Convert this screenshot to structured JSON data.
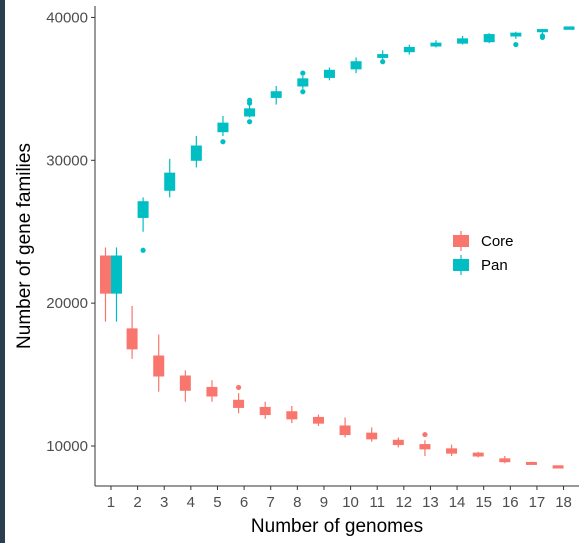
{
  "chart_data": {
    "type": "boxplot",
    "xlabel": "Number of genomes",
    "ylabel": "Number of gene families",
    "categories": [
      "1",
      "2",
      "3",
      "4",
      "5",
      "6",
      "7",
      "8",
      "9",
      "10",
      "11",
      "12",
      "13",
      "14",
      "15",
      "16",
      "17",
      "18"
    ],
    "ylim": [
      7200,
      40800
    ],
    "yticks": [
      10000,
      20000,
      30000,
      40000
    ],
    "legend_position": "right-center",
    "grid": false,
    "series": [
      {
        "name": "Core",
        "color": "#F8766D",
        "boxes": [
          {
            "lo": 18700,
            "q1": 20700,
            "med": 20800,
            "q3": 23300,
            "hi": 23900,
            "out": []
          },
          {
            "lo": 16100,
            "q1": 16800,
            "med": 17100,
            "q3": 18200,
            "hi": 19800,
            "out": []
          },
          {
            "lo": 13800,
            "q1": 14900,
            "med": 15600,
            "q3": 16300,
            "hi": 17800,
            "out": []
          },
          {
            "lo": 13100,
            "q1": 13900,
            "med": 14400,
            "q3": 14900,
            "hi": 15300,
            "out": []
          },
          {
            "lo": 13100,
            "q1": 13500,
            "med": 13800,
            "q3": 14100,
            "hi": 14600,
            "out": []
          },
          {
            "lo": 12300,
            "q1": 12700,
            "med": 12900,
            "q3": 13200,
            "hi": 13700,
            "out": [
              14100
            ]
          },
          {
            "lo": 11900,
            "q1": 12200,
            "med": 12500,
            "q3": 12700,
            "hi": 13100,
            "out": []
          },
          {
            "lo": 11600,
            "q1": 11900,
            "med": 12100,
            "q3": 12400,
            "hi": 12800,
            "out": []
          },
          {
            "lo": 11400,
            "q1": 11600,
            "med": 11800,
            "q3": 12000,
            "hi": 12200,
            "out": []
          },
          {
            "lo": 10600,
            "q1": 10800,
            "med": 11100,
            "q3": 11400,
            "hi": 12000,
            "out": []
          },
          {
            "lo": 10300,
            "q1": 10500,
            "med": 10700,
            "q3": 10900,
            "hi": 11300,
            "out": []
          },
          {
            "lo": 9900,
            "q1": 10100,
            "med": 10200,
            "q3": 10400,
            "hi": 10600,
            "out": []
          },
          {
            "lo": 9300,
            "q1": 9800,
            "med": 10000,
            "q3": 10100,
            "hi": 10400,
            "out": [
              10800
            ]
          },
          {
            "lo": 9300,
            "q1": 9500,
            "med": 9600,
            "q3": 9800,
            "hi": 10100,
            "out": []
          },
          {
            "lo": 9200,
            "q1": 9300,
            "med": 9400,
            "q3": 9500,
            "hi": 9600,
            "out": []
          },
          {
            "lo": 8800,
            "q1": 8900,
            "med": 9000,
            "q3": 9100,
            "hi": 9300,
            "out": []
          },
          {
            "lo": 8700,
            "q1": 8750,
            "med": 8800,
            "q3": 8850,
            "hi": 8900,
            "out": []
          },
          {
            "lo": 8550,
            "q1": 8570,
            "med": 8580,
            "q3": 8600,
            "hi": 8620,
            "out": []
          }
        ]
      },
      {
        "name": "Pan",
        "color": "#00BFC4",
        "boxes": [
          {
            "lo": 18700,
            "q1": 20700,
            "med": 20800,
            "q3": 23300,
            "hi": 23900,
            "out": []
          },
          {
            "lo": 25000,
            "q1": 26000,
            "med": 26600,
            "q3": 27100,
            "hi": 27400,
            "out": [
              23700
            ]
          },
          {
            "lo": 27400,
            "q1": 27900,
            "med": 28500,
            "q3": 29100,
            "hi": 30100,
            "out": []
          },
          {
            "lo": 29500,
            "q1": 30000,
            "med": 30500,
            "q3": 31000,
            "hi": 31700,
            "out": []
          },
          {
            "lo": 31700,
            "q1": 32000,
            "med": 32300,
            "q3": 32600,
            "hi": 33100,
            "out": [
              31300
            ]
          },
          {
            "lo": 33000,
            "q1": 33100,
            "med": 33300,
            "q3": 33600,
            "hi": 33900,
            "out": [
              32700,
              34000,
              34200
            ]
          },
          {
            "lo": 33900,
            "q1": 34400,
            "med": 34600,
            "q3": 34800,
            "hi": 35200,
            "out": []
          },
          {
            "lo": 35000,
            "q1": 35200,
            "med": 35400,
            "q3": 35700,
            "hi": 35900,
            "out": [
              34800,
              36100
            ]
          },
          {
            "lo": 35600,
            "q1": 35800,
            "med": 36100,
            "q3": 36300,
            "hi": 36500,
            "out": []
          },
          {
            "lo": 36100,
            "q1": 36400,
            "med": 36600,
            "q3": 36900,
            "hi": 37200,
            "out": []
          },
          {
            "lo": 36900,
            "q1": 37200,
            "med": 37300,
            "q3": 37400,
            "hi": 37700,
            "out": [
              36900
            ]
          },
          {
            "lo": 37400,
            "q1": 37600,
            "med": 37800,
            "q3": 37900,
            "hi": 38100,
            "out": []
          },
          {
            "lo": 37900,
            "q1": 38000,
            "med": 38100,
            "q3": 38200,
            "hi": 38400,
            "out": []
          },
          {
            "lo": 38100,
            "q1": 38200,
            "med": 38400,
            "q3": 38500,
            "hi": 38700,
            "out": []
          },
          {
            "lo": 38200,
            "q1": 38300,
            "med": 38500,
            "q3": 38800,
            "hi": 38900,
            "out": []
          },
          {
            "lo": 38500,
            "q1": 38700,
            "med": 38800,
            "q3": 38900,
            "hi": 39000,
            "out": [
              38100
            ]
          },
          {
            "lo": 38800,
            "q1": 39000,
            "med": 39050,
            "q3": 39150,
            "hi": 39200,
            "out": [
              38600,
              38700
            ]
          },
          {
            "lo": 39250,
            "q1": 39280,
            "med": 39300,
            "q3": 39310,
            "hi": 39330,
            "out": []
          }
        ]
      }
    ]
  }
}
